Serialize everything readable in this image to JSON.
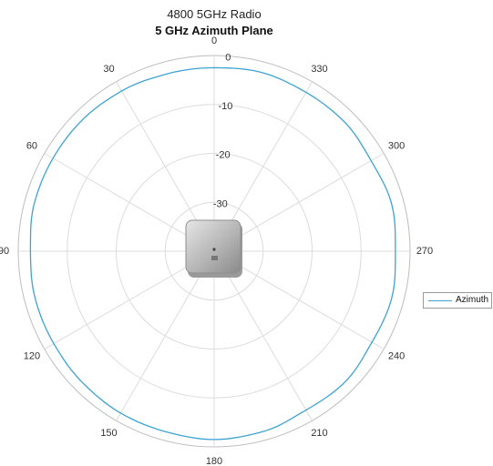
{
  "chart_data": {
    "type": "line",
    "coordinate_system": "polar",
    "title": "4800 5GHz Radio",
    "subtitle": "5 GHz Azimuth Plane",
    "angle_zero": "top",
    "angle_direction": "counterclockwise",
    "theta_ticks": [
      "0",
      "30",
      "60",
      "90",
      "120",
      "150",
      "180",
      "210",
      "240",
      "270",
      "300",
      "330"
    ],
    "r_ticks": [
      "0",
      "-10",
      "-20",
      "-30"
    ],
    "rlim": [
      -40,
      0
    ],
    "grid": true,
    "legend_position": "right",
    "series": [
      {
        "name": "Azimuth",
        "color": "#3ea3d3",
        "theta": [
          0,
          15,
          30,
          45,
          60,
          75,
          90,
          105,
          120,
          135,
          150,
          165,
          180,
          195,
          210,
          225,
          240,
          255,
          270,
          285,
          300,
          315,
          330,
          345
        ],
        "r": [
          -2.5,
          -2.5,
          -2.2,
          -2.0,
          -2.0,
          -2.0,
          -2.5,
          -2.2,
          -2.2,
          -2.0,
          -1.8,
          -1.8,
          -1.5,
          -1.8,
          -2.5,
          -2.2,
          -2.8,
          -2.5,
          -3.0,
          -2.5,
          -3.0,
          -2.5,
          -2.5,
          -2.2
        ]
      }
    ]
  }
}
